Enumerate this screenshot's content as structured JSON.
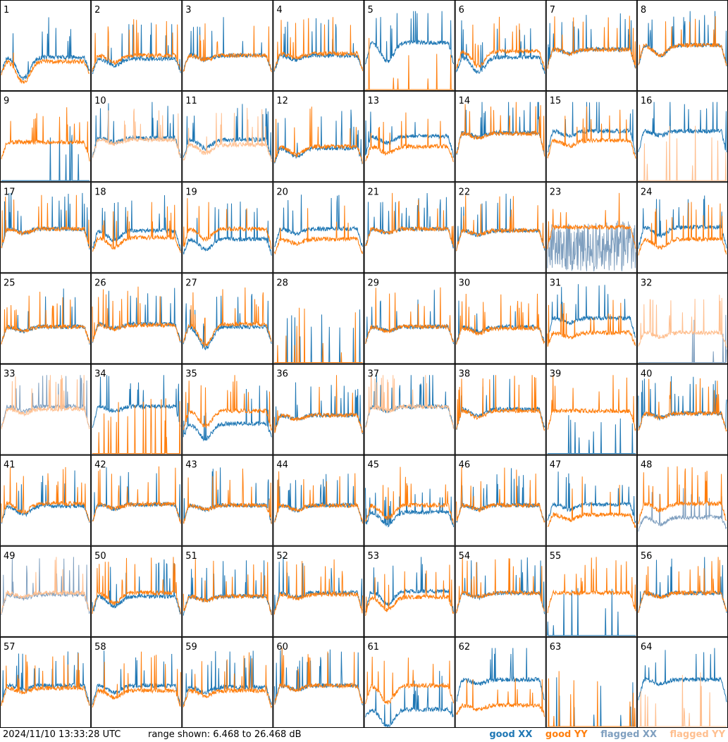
{
  "chart_data": {
    "type": "line",
    "layout": "8x8 small multiples",
    "range_db": [
      6.468,
      26.468
    ],
    "legend": [
      {
        "label": "good XX",
        "color": "#1f77b4"
      },
      {
        "label": "good YY",
        "color": "#ff7f0e"
      },
      {
        "label": "flagged XX",
        "color": "#7f9fbf"
      },
      {
        "label": "flagged YY",
        "color": "#ffbf8f"
      }
    ],
    "panels": [
      {
        "label": "1",
        "xx": "good",
        "yy": "good",
        "base_xx": 0.38,
        "base_yy": 0.33,
        "dip": 0.25
      },
      {
        "label": "2",
        "xx": "good",
        "yy": "good",
        "base_xx": 0.36,
        "base_yy": 0.4,
        "dip": 0.08
      },
      {
        "label": "3",
        "xx": "good",
        "yy": "good",
        "base_xx": 0.4,
        "base_yy": 0.4,
        "dip": 0.05
      },
      {
        "label": "4",
        "xx": "good",
        "yy": "good",
        "base_xx": 0.4,
        "base_yy": 0.42,
        "dip": 0.05
      },
      {
        "label": "5",
        "xx": "good",
        "yy": "good",
        "base_xx": 0.55,
        "base_yy": 0.0,
        "dip": 0.22,
        "yy_mode": "spikes"
      },
      {
        "label": "6",
        "xx": "good",
        "yy": "good",
        "base_xx": 0.38,
        "base_yy": 0.45,
        "dip": 0.18
      },
      {
        "label": "7",
        "xx": "good",
        "yy": "good",
        "base_xx": 0.47,
        "base_yy": 0.47,
        "dip": 0.05
      },
      {
        "label": "8",
        "xx": "good",
        "yy": "good",
        "base_xx": 0.52,
        "base_yy": 0.52,
        "dip": 0.12
      },
      {
        "label": "9",
        "xx": "good",
        "yy": "good",
        "base_xx": 0.0,
        "base_yy": 0.45,
        "dip": 0.0,
        "xx_mode": "spikes"
      },
      {
        "label": "10",
        "xx": "good",
        "yy": "flagged",
        "base_xx": 0.5,
        "base_yy": 0.48,
        "dip": 0.05
      },
      {
        "label": "11",
        "xx": "good",
        "yy": "flagged",
        "base_xx": 0.48,
        "base_yy": 0.42,
        "dip": 0.1
      },
      {
        "label": "12",
        "xx": "good",
        "yy": "good",
        "base_xx": 0.38,
        "base_yy": 0.4,
        "dip": 0.1
      },
      {
        "label": "13",
        "xx": "good",
        "yy": "good",
        "base_xx": 0.52,
        "base_yy": 0.4,
        "dip": 0.08
      },
      {
        "label": "14",
        "xx": "good",
        "yy": "good",
        "base_xx": 0.56,
        "base_yy": 0.55,
        "dip": 0.05
      },
      {
        "label": "15",
        "xx": "good",
        "yy": "good",
        "base_xx": 0.58,
        "base_yy": 0.47,
        "dip": 0.06
      },
      {
        "label": "16",
        "xx": "good",
        "yy": "flagged",
        "base_xx": 0.58,
        "base_yy": 0.0,
        "dip": 0.05,
        "yy_mode": "spikes"
      },
      {
        "label": "17",
        "xx": "good",
        "yy": "good",
        "base_xx": 0.5,
        "base_yy": 0.5,
        "dip": 0.05
      },
      {
        "label": "18",
        "xx": "good",
        "yy": "good",
        "base_xx": 0.48,
        "base_yy": 0.4,
        "dip": 0.12
      },
      {
        "label": "19",
        "xx": "good",
        "yy": "good",
        "base_xx": 0.38,
        "base_yy": 0.5,
        "dip": 0.12
      },
      {
        "label": "20",
        "xx": "good",
        "yy": "good",
        "base_xx": 0.5,
        "base_yy": 0.38,
        "dip": 0.05
      },
      {
        "label": "21",
        "xx": "good",
        "yy": "good",
        "base_xx": 0.5,
        "base_yy": 0.5,
        "dip": 0.05
      },
      {
        "label": "22",
        "xx": "good",
        "yy": "good",
        "base_xx": 0.48,
        "base_yy": 0.48,
        "dip": 0.05
      },
      {
        "label": "23",
        "xx": "flagged",
        "yy": "good",
        "base_xx": 0.3,
        "base_yy": 0.52,
        "dip": 0.0,
        "xx_mode": "noisy"
      },
      {
        "label": "24",
        "xx": "good",
        "yy": "good",
        "base_xx": 0.52,
        "base_yy": 0.38,
        "dip": 0.1
      },
      {
        "label": "25",
        "xx": "good",
        "yy": "good",
        "base_xx": 0.42,
        "base_yy": 0.42,
        "dip": 0.05
      },
      {
        "label": "26",
        "xx": "good",
        "yy": "good",
        "base_xx": 0.45,
        "base_yy": 0.44,
        "dip": 0.05
      },
      {
        "label": "27",
        "xx": "good",
        "yy": "good",
        "base_xx": 0.42,
        "base_yy": 0.45,
        "dip": 0.25
      },
      {
        "label": "28",
        "xx": "good",
        "yy": "good",
        "base_xx": 0.0,
        "base_yy": 0.0,
        "dip": 0.0,
        "yy_mode": "spikes",
        "xx_mode": "spikes"
      },
      {
        "label": "29",
        "xx": "good",
        "yy": "good",
        "base_xx": 0.42,
        "base_yy": 0.42,
        "dip": 0.05
      },
      {
        "label": "30",
        "xx": "good",
        "yy": "good",
        "base_xx": 0.42,
        "base_yy": 0.4,
        "dip": 0.06
      },
      {
        "label": "31",
        "xx": "good",
        "yy": "good",
        "base_xx": 0.52,
        "base_yy": 0.35,
        "dip": 0.05
      },
      {
        "label": "32",
        "xx": "flagged",
        "yy": "flagged",
        "base_xx": 0.0,
        "base_yy": 0.35,
        "dip": 0.05,
        "xx_mode": "spikes"
      },
      {
        "label": "33",
        "xx": "flagged",
        "yy": "flagged",
        "base_xx": 0.55,
        "base_yy": 0.52,
        "dip": 0.05
      },
      {
        "label": "34",
        "xx": "good",
        "yy": "good",
        "base_xx": 0.55,
        "base_yy": 0.0,
        "dip": 0.05,
        "yy_mode": "spikes"
      },
      {
        "label": "35",
        "xx": "good",
        "yy": "good",
        "base_xx": 0.35,
        "base_yy": 0.5,
        "dip": 0.18
      },
      {
        "label": "36",
        "xx": "good",
        "yy": "good",
        "base_xx": 0.45,
        "base_yy": 0.45,
        "dip": 0.05
      },
      {
        "label": "37",
        "xx": "good",
        "yy": "flagged",
        "base_xx": 0.55,
        "base_yy": 0.55,
        "dip": 0.05
      },
      {
        "label": "38",
        "xx": "good",
        "yy": "good",
        "base_xx": 0.52,
        "base_yy": 0.5,
        "dip": 0.08
      },
      {
        "label": "39",
        "xx": "good",
        "yy": "good",
        "base_xx": 0.0,
        "base_yy": 0.5,
        "dip": 0.0,
        "xx_mode": "spikes"
      },
      {
        "label": "40",
        "xx": "good",
        "yy": "good",
        "base_xx": 0.47,
        "base_yy": 0.47,
        "dip": 0.05
      },
      {
        "label": "41",
        "xx": "good",
        "yy": "good",
        "base_xx": 0.45,
        "base_yy": 0.48,
        "dip": 0.1
      },
      {
        "label": "42",
        "xx": "good",
        "yy": "good",
        "base_xx": 0.47,
        "base_yy": 0.47,
        "dip": 0.05
      },
      {
        "label": "43",
        "xx": "good",
        "yy": "good",
        "base_xx": 0.46,
        "base_yy": 0.46,
        "dip": 0.05
      },
      {
        "label": "44",
        "xx": "good",
        "yy": "good",
        "base_xx": 0.46,
        "base_yy": 0.46,
        "dip": 0.06
      },
      {
        "label": "45",
        "xx": "good",
        "yy": "good",
        "base_xx": 0.38,
        "base_yy": 0.46,
        "dip": 0.15
      },
      {
        "label": "46",
        "xx": "good",
        "yy": "good",
        "base_xx": 0.46,
        "base_yy": 0.46,
        "dip": 0.05
      },
      {
        "label": "47",
        "xx": "good",
        "yy": "good",
        "base_xx": 0.47,
        "base_yy": 0.35,
        "dip": 0.06
      },
      {
        "label": "48",
        "xx": "flagged",
        "yy": "good",
        "base_xx": 0.32,
        "base_yy": 0.48,
        "dip": 0.08
      },
      {
        "label": "49",
        "xx": "flagged",
        "yy": "flagged",
        "base_xx": 0.48,
        "base_yy": 0.5,
        "dip": 0.05
      },
      {
        "label": "50",
        "xx": "good",
        "yy": "good",
        "base_xx": 0.46,
        "base_yy": 0.5,
        "dip": 0.12
      },
      {
        "label": "51",
        "xx": "good",
        "yy": "good",
        "base_xx": 0.46,
        "base_yy": 0.46,
        "dip": 0.05
      },
      {
        "label": "52",
        "xx": "good",
        "yy": "good",
        "base_xx": 0.5,
        "base_yy": 0.48,
        "dip": 0.05
      },
      {
        "label": "53",
        "xx": "good",
        "yy": "good",
        "base_xx": 0.52,
        "base_yy": 0.45,
        "dip": 0.15
      },
      {
        "label": "54",
        "xx": "good",
        "yy": "good",
        "base_xx": 0.5,
        "base_yy": 0.5,
        "dip": 0.05
      },
      {
        "label": "55",
        "xx": "good",
        "yy": "good",
        "base_xx": 0.0,
        "base_yy": 0.5,
        "dip": 0.0,
        "xx_mode": "spikes"
      },
      {
        "label": "56",
        "xx": "good",
        "yy": "good",
        "base_xx": 0.5,
        "base_yy": 0.5,
        "dip": 0.05
      },
      {
        "label": "57",
        "xx": "good",
        "yy": "good",
        "base_xx": 0.48,
        "base_yy": 0.45,
        "dip": 0.05
      },
      {
        "label": "58",
        "xx": "good",
        "yy": "good",
        "base_xx": 0.48,
        "base_yy": 0.42,
        "dip": 0.08
      },
      {
        "label": "59",
        "xx": "good",
        "yy": "good",
        "base_xx": 0.46,
        "base_yy": 0.42,
        "dip": 0.06
      },
      {
        "label": "60",
        "xx": "good",
        "yy": "good",
        "base_xx": 0.48,
        "base_yy": 0.48,
        "dip": 0.05
      },
      {
        "label": "61",
        "xx": "good",
        "yy": "good",
        "base_xx": 0.2,
        "base_yy": 0.48,
        "dip": 0.2
      },
      {
        "label": "62",
        "xx": "good",
        "yy": "good",
        "base_xx": 0.55,
        "base_yy": 0.25,
        "dip": 0.05
      },
      {
        "label": "63",
        "xx": "good",
        "yy": "good",
        "base_xx": 0.0,
        "base_yy": 0.0,
        "dip": 0.0,
        "yy_mode": "spikes",
        "xx_mode": "spikes"
      },
      {
        "label": "64",
        "xx": "good",
        "yy": "flagged",
        "base_xx": 0.55,
        "base_yy": 0.0,
        "dip": 0.05,
        "yy_mode": "spikes"
      }
    ]
  },
  "footer": {
    "timestamp": "2024/11/10 13:33:28 UTC",
    "range_text": "range shown: 6.468 to 26.468 dB"
  }
}
